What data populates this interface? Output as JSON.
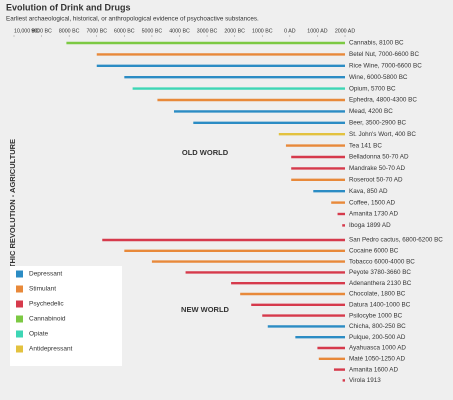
{
  "chart_data": {
    "type": "timeline",
    "title": "Evolution of Drink and Drugs",
    "subtitle": "Earliest archaeological, historical, or anthropological evidence of psychoactive substances.",
    "ylabel": "NEOLITHIC REVOLUTION - AGRICULTURE",
    "xlim": [
      -10000,
      2000
    ],
    "xticks": [
      {
        "value": -10000,
        "label": "10,000 BC"
      },
      {
        "value": -9000,
        "label": "9000 BC"
      },
      {
        "value": -8000,
        "label": "8000 BC"
      },
      {
        "value": -7000,
        "label": "7000 BC"
      },
      {
        "value": -6000,
        "label": "6000 BC"
      },
      {
        "value": -5000,
        "label": "5000 BC"
      },
      {
        "value": -4000,
        "label": "4000 BC"
      },
      {
        "value": -3000,
        "label": "3000 BC"
      },
      {
        "value": -2000,
        "label": "2000 BC"
      },
      {
        "value": -1000,
        "label": "1000 BC"
      },
      {
        "value": 0,
        "label": "0 AD"
      },
      {
        "value": 1000,
        "label": "1000 AD"
      },
      {
        "value": 2000,
        "label": "2000 AD"
      }
    ],
    "legend": [
      {
        "name": "Depressant",
        "color": "#2b8cc4"
      },
      {
        "name": "Stimulant",
        "color": "#e8893a"
      },
      {
        "name": "Psychedelic",
        "color": "#d63a4c"
      },
      {
        "name": "Cannabinoid",
        "color": "#7cc943"
      },
      {
        "name": "Opiate",
        "color": "#3dd6b5"
      },
      {
        "name": "Antidepressant",
        "color": "#e3c23f"
      }
    ],
    "groups": [
      {
        "name": "OLD WORLD",
        "items": [
          {
            "label": "Cannabis, 8100 BC",
            "value": -8100,
            "color": "#7cc943"
          },
          {
            "label": "Betel Nut, 7000-6600 BC",
            "value": -7000,
            "color": "#e8893a"
          },
          {
            "label": "Rice Wine, 7000-6600 BC",
            "value": -7000,
            "color": "#2b8cc4"
          },
          {
            "label": "Wine, 6000-5800 BC",
            "value": -6000,
            "color": "#2b8cc4"
          },
          {
            "label": "Opium, 5700 BC",
            "value": -5700,
            "color": "#3dd6b5"
          },
          {
            "label": "Ephedra, 4800-4300 BC",
            "value": -4800,
            "color": "#e8893a"
          },
          {
            "label": "Mead, 4200 BC",
            "value": -4200,
            "color": "#2b8cc4"
          },
          {
            "label": "Beer, 3500-2900 BC",
            "value": -3500,
            "color": "#2b8cc4"
          },
          {
            "label": "St. John's Wort, 400 BC",
            "value": -400,
            "color": "#e3c23f"
          },
          {
            "label": "Tea 141 BC",
            "value": -141,
            "color": "#e8893a"
          },
          {
            "label": "Belladonna 50-70 AD",
            "value": 50,
            "color": "#d63a4c"
          },
          {
            "label": "Mandrake 50-70 AD",
            "value": 50,
            "color": "#d63a4c"
          },
          {
            "label": "Roseroot 50-70 AD",
            "value": 50,
            "color": "#e8893a"
          },
          {
            "label": "Kava, 850 AD",
            "value": 850,
            "color": "#2b8cc4"
          },
          {
            "label": "Coffee, 1500 AD",
            "value": 1500,
            "color": "#e8893a"
          },
          {
            "label": "Amanita 1730 AD",
            "value": 1730,
            "color": "#d63a4c"
          },
          {
            "label": "Iboga 1899 AD",
            "value": 1899,
            "color": "#d63a4c"
          }
        ]
      },
      {
        "name": "NEW WORLD",
        "items": [
          {
            "label": "San Pedro cactus, 6800-6200 BC",
            "value": -6800,
            "color": "#d63a4c"
          },
          {
            "label": "Cocaine 6000 BC",
            "value": -6000,
            "color": "#e8893a"
          },
          {
            "label": "Tobacco 6000-4000 BC",
            "value": -5000,
            "color": "#e8893a"
          },
          {
            "label": "Peyote 3780-3660 BC",
            "value": -3780,
            "color": "#d63a4c"
          },
          {
            "label": "Adenanthera 2130 BC",
            "value": -2130,
            "color": "#d63a4c"
          },
          {
            "label": "Chocolate, 1800 BC",
            "value": -1800,
            "color": "#e8893a"
          },
          {
            "label": "Datura 1400-1000 BC",
            "value": -1400,
            "color": "#d63a4c"
          },
          {
            "label": "Psilocybe 1000 BC",
            "value": -1000,
            "color": "#d63a4c"
          },
          {
            "label": "Chicha, 800-250 BC",
            "value": -800,
            "color": "#2b8cc4"
          },
          {
            "label": "Pulque, 200-500 AD",
            "value": 200,
            "color": "#2b8cc4"
          },
          {
            "label": "Ayahuasca 1000 AD",
            "value": 1000,
            "color": "#d63a4c"
          },
          {
            "label": "Maté 1050-1250 AD",
            "value": 1050,
            "color": "#e8893a"
          },
          {
            "label": "Amanita 1600 AD",
            "value": 1600,
            "color": "#d63a4c"
          },
          {
            "label": "Virola 1913",
            "value": 1913,
            "color": "#d63a4c"
          }
        ]
      }
    ]
  }
}
